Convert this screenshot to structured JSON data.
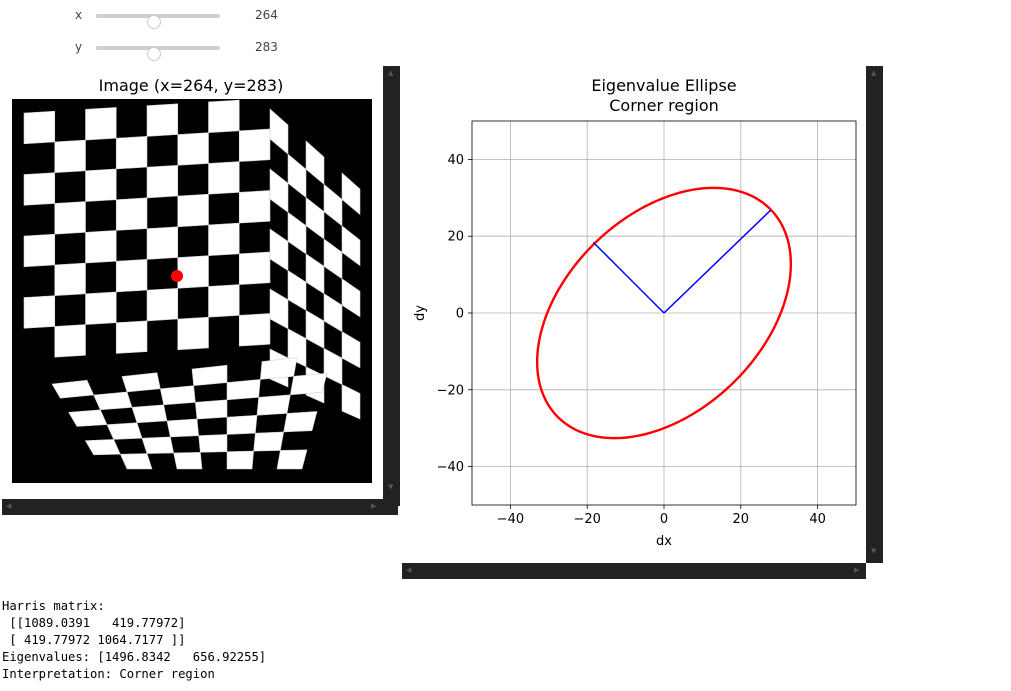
{
  "sliders": [
    {
      "name": "x",
      "label": "x",
      "value": "264",
      "fraction": 0.46
    },
    {
      "name": "y",
      "label": "y",
      "value": "283",
      "fraction": 0.46
    }
  ],
  "image_panel": {
    "title": "Image (x=264, y=283)",
    "marker_color": "#ff0000"
  },
  "chart_data": {
    "type": "line",
    "title": "Eigenvalue Ellipse",
    "subtitle": "Corner region",
    "xlabel": "dx",
    "ylabel": "dy",
    "xlim": [
      -50,
      50
    ],
    "ylim": [
      -50,
      50
    ],
    "xticks": [
      -40,
      -20,
      0,
      20,
      40
    ],
    "yticks": [
      -40,
      -20,
      0,
      20,
      40
    ],
    "xtick_labels": [
      "−40",
      "−20",
      "0",
      "20",
      "40"
    ],
    "ytick_labels": [
      "−40",
      "−20",
      "0",
      "20",
      "40"
    ],
    "grid": true,
    "series": [
      {
        "kind": "ellipse",
        "color": "#ff0000",
        "center": [
          0,
          0
        ],
        "semi_axis_major": 38.7,
        "semi_axis_minor": 25.6,
        "major_axis_angle_deg": 44
      },
      {
        "kind": "vector",
        "color": "#0000ff",
        "x": [
          0,
          27.8
        ],
        "y": [
          0,
          26.8
        ]
      },
      {
        "kind": "vector",
        "color": "#0000ff",
        "x": [
          0,
          -18.4
        ],
        "y": [
          0,
          18.4
        ]
      }
    ]
  },
  "output": {
    "lines": [
      "Harris matrix:",
      " [[1089.0391   419.77972]",
      " [ 419.77972 1064.7177 ]]",
      "Eigenvalues: [1496.8342   656.92255]",
      "Interpretation: Corner region"
    ]
  }
}
